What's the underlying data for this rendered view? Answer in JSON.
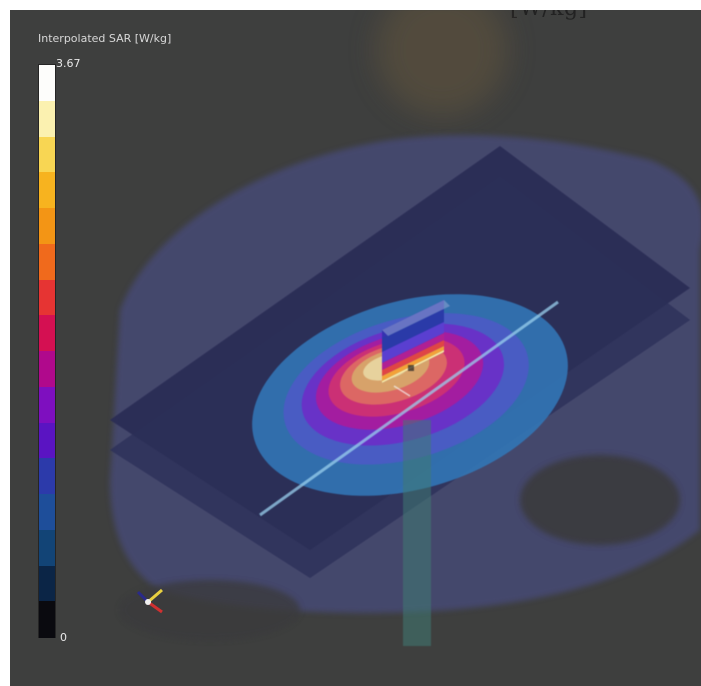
{
  "page": {
    "top_clip_text": "[W/kg]"
  },
  "colorbar": {
    "title": "Interpolated SAR [W/kg]",
    "max_label": "3.67",
    "min_label": "0",
    "colors": [
      "#fdfdfb",
      "#fbf1b0",
      "#f8d653",
      "#f7b31f",
      "#f39515",
      "#f06a1c",
      "#e63433",
      "#d41052",
      "#b0098c",
      "#7e0fbf",
      "#5a14c2",
      "#2c3aaa",
      "#1e4e9a",
      "#124476",
      "#0b2546",
      "#0a0a0f"
    ]
  },
  "scene": {
    "background_color": "#3e3f3e",
    "triad": [
      "x-axis",
      "y-axis",
      "z-axis"
    ]
  }
}
